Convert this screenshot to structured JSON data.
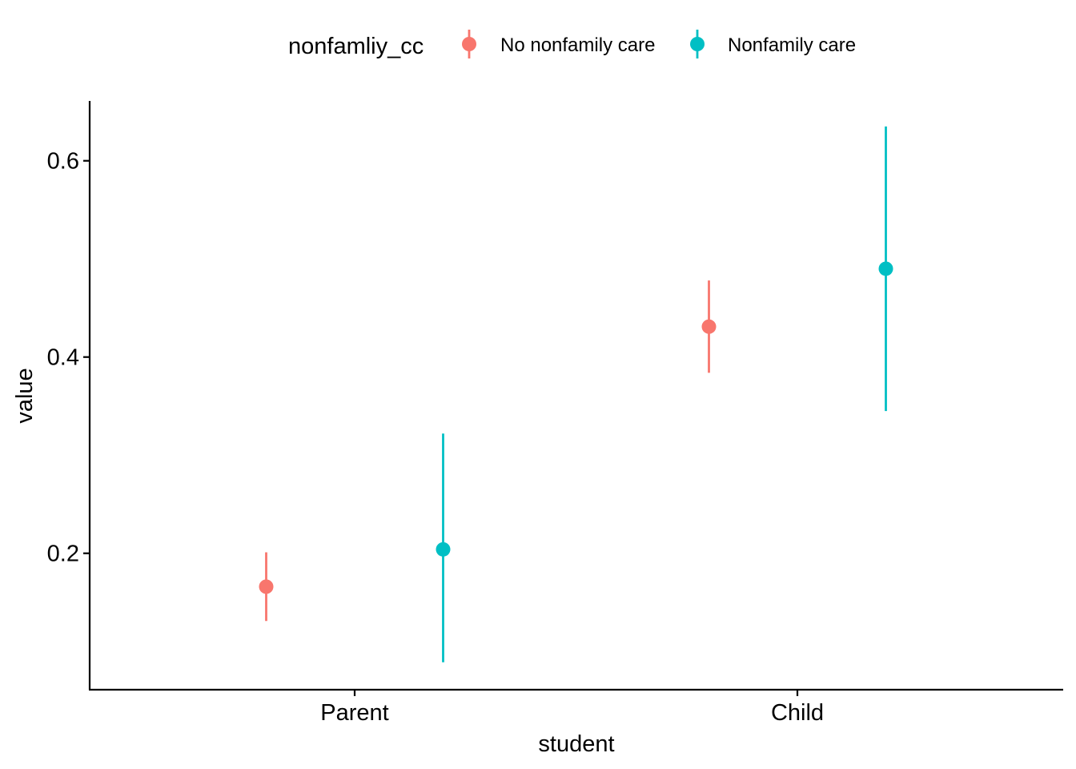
{
  "chart_data": {
    "type": "scatter",
    "subtype": "pointrange",
    "title": "",
    "xlabel": "student",
    "ylabel": "value",
    "categories": [
      "Parent",
      "Child"
    ],
    "y_ticks": [
      0.2,
      0.4,
      0.6
    ],
    "y_tick_labels": [
      "0.2",
      "0.4",
      "0.6"
    ],
    "ylim": [
      0.061,
      0.661
    ],
    "grid": false,
    "legend": {
      "title": "nonfamliy_cc",
      "position": "top"
    },
    "series": [
      {
        "name": "No nonfamily care",
        "color": "#F8766D",
        "values": [
          0.166,
          0.431
        ],
        "lower": [
          0.131,
          0.384
        ],
        "upper": [
          0.201,
          0.478
        ]
      },
      {
        "name": "Nonfamily care",
        "color": "#00BFC4",
        "values": [
          0.204,
          0.49
        ],
        "lower": [
          0.089,
          0.345
        ],
        "upper": [
          0.322,
          0.635
        ]
      }
    ]
  }
}
